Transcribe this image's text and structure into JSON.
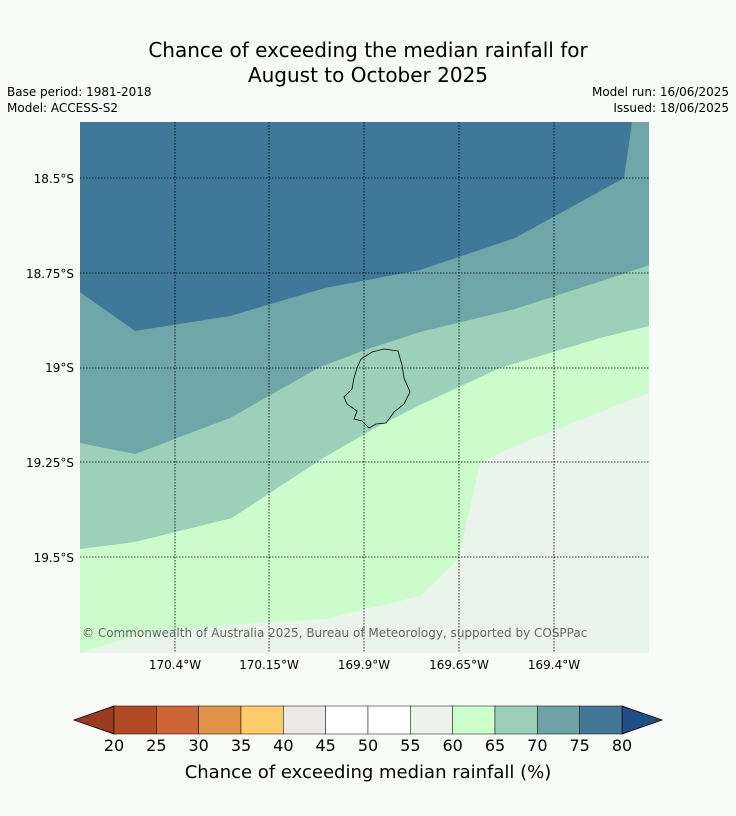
{
  "title_line1": "Chance of exceeding the median rainfall for",
  "title_line2": "August to October 2025",
  "base_period": "Base period: 1981-2018",
  "model": "Model: ACCESS-S2",
  "model_run": "Model run: 16/06/2025",
  "issued": "Issued: 18/06/2025",
  "copyright": "© Commonwealth of Australia 2025, Bureau of Meteorology, supported by COSPPac",
  "lat_labels": [
    "18.5°S",
    "18.75°S",
    "19°S",
    "19.25°S",
    "19.5°S"
  ],
  "lon_labels": [
    "170.4°W",
    "170.15°W",
    "169.9°W",
    "169.65°W",
    "169.4°W"
  ],
  "colorbar": {
    "label": "Chance of exceeding median rainfall (%)",
    "ticks": [
      "20",
      "25",
      "30",
      "35",
      "40",
      "45",
      "50",
      "55",
      "60",
      "65",
      "70",
      "75",
      "80"
    ],
    "colors": [
      "#b34a26",
      "#cc6533",
      "#e09448",
      "#fecb6a",
      "#ede8e4",
      "#ffffff",
      "#ffffff",
      "#e8f5e8",
      "#ccffcc",
      "#9ccfb8",
      "#6fa3a6",
      "#427796"
    ],
    "low_extend_color": "#9a3a20",
    "high_extend_color": "#1f4f85"
  },
  "zones": {
    "c75": "#3f7898",
    "c70": "#6fa6a8",
    "c65": "#9cd0b8",
    "c60": "#ccfccc",
    "c55": "#e9f4ea"
  }
}
